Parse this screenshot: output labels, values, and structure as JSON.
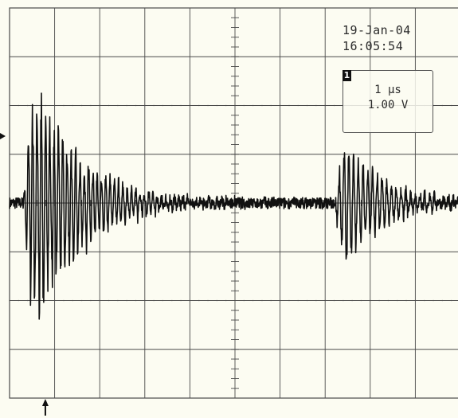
{
  "header": {
    "date": "19-Jan-04",
    "time": "16:05:54"
  },
  "channel_readout": {
    "channel": "1",
    "time_per_div": "1 µs",
    "volts_per_div": "1.00 V"
  },
  "markers": {
    "ground_level": "left-arrow-marker",
    "trigger_position": "up-arrow-marker"
  },
  "colors": {
    "screen_background": "#fcfcf2",
    "grid": "#4a4a4a",
    "trace": "#111111"
  },
  "chart_data": {
    "type": "line",
    "title": "",
    "xlabel": "",
    "ylabel": "",
    "grid": true,
    "xlim": [
      0,
      10
    ],
    "ylim": [
      -4,
      4
    ],
    "x_units": "µs",
    "y_units": "V",
    "series": [
      {
        "bursts": [
          {
            "center_us": 0.9,
            "peak_amplitude_v": 3.6,
            "duration_us": 3.0
          },
          {
            "center_us": 7.8,
            "peak_amplitude_v": 2.0,
            "duration_us": 2.4
          }
        ],
        "baseline_v": 0.0,
        "noise_v": 0.12
      }
    ]
  }
}
